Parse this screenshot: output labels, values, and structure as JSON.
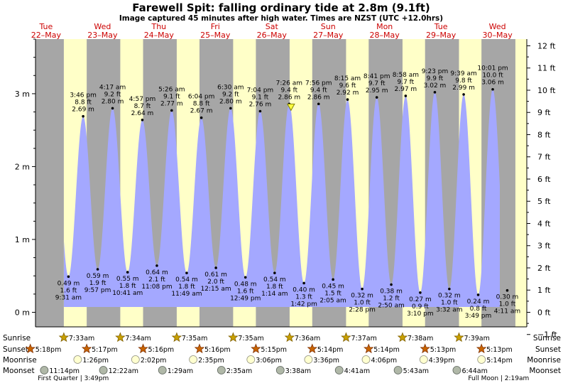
{
  "title": "Farewell Spit: falling  ordinary tide at 2.8m (9.1ft)",
  "subtitle": "Image captured 45 minutes after high water. Times are NZST (UTC +12.0hrs)",
  "chart_data": {
    "type": "area",
    "title": "Farewell Spit: falling  ordinary tide at 2.8m (9.1ft)",
    "subtitle": "Image captured 45 minutes after high water. Times are NZST (UTC +12.0hrs)",
    "xlabel": "",
    "ylabel": "",
    "y_left_ticks": [
      "0 m",
      "1 m",
      "2 m",
      "3 m"
    ],
    "y_right_ticks": [
      "−1 ft",
      "0 ft",
      "1 ft",
      "2 ft",
      "3 ft",
      "4 ft",
      "5 ft",
      "6 ft",
      "7 ft",
      "8 ft",
      "9 ft",
      "10 ft",
      "11 ft",
      "12 ft"
    ],
    "ylim_m": [
      -0.2,
      3.75
    ],
    "x_range_hours": [
      -4.5,
      204.5
    ],
    "days": [
      {
        "dow": "Tue",
        "date": "22–May"
      },
      {
        "dow": "Wed",
        "date": "23–May"
      },
      {
        "dow": "Thu",
        "date": "24–May"
      },
      {
        "dow": "Fri",
        "date": "25–May"
      },
      {
        "dow": "Sat",
        "date": "26–May"
      },
      {
        "dow": "Sun",
        "date": "27–May"
      },
      {
        "dow": "Mon",
        "date": "28–May"
      },
      {
        "dow": "Tue",
        "date": "29–May"
      },
      {
        "dow": "Wed",
        "date": "30–May"
      }
    ],
    "tides": [
      {
        "kind": "low",
        "time": "9:31 am",
        "m": "0.49 m",
        "ft": "1.6 ft",
        "h": 9.517,
        "v": 0.49
      },
      {
        "kind": "high",
        "time": "3:46 pm",
        "m": "2.69 m",
        "ft": "8.8 ft",
        "h": 15.767,
        "v": 2.69
      },
      {
        "kind": "low",
        "time": "9:57 pm",
        "m": "0.59 m",
        "ft": "1.9 ft",
        "h": 21.95,
        "v": 0.59
      },
      {
        "kind": "high",
        "time": "4:17 am",
        "m": "2.80 m",
        "ft": "9.2 ft",
        "h": 28.283,
        "v": 2.8
      },
      {
        "kind": "low",
        "time": "10:41 am",
        "m": "0.55 m",
        "ft": "1.8 ft",
        "h": 34.683,
        "v": 0.55
      },
      {
        "kind": "high",
        "time": "4:57 pm",
        "m": "2.64 m",
        "ft": "8.7 ft",
        "h": 40.95,
        "v": 2.64
      },
      {
        "kind": "low",
        "time": "11:08 pm",
        "m": "0.64 m",
        "ft": "2.1 ft",
        "h": 47.133,
        "v": 0.64
      },
      {
        "kind": "high",
        "time": "5:26 am",
        "m": "2.77 m",
        "ft": "9.1 ft",
        "h": 53.433,
        "v": 2.77
      },
      {
        "kind": "low",
        "time": "11:49 am",
        "m": "0.54 m",
        "ft": "1.8 ft",
        "h": 59.817,
        "v": 0.54
      },
      {
        "kind": "high",
        "time": "6:04 pm",
        "m": "2.67 m",
        "ft": "8.8 ft",
        "h": 66.067,
        "v": 2.67
      },
      {
        "kind": "low",
        "time": "12:15 am",
        "m": "0.61 m",
        "ft": "2.0 ft",
        "h": 72.25,
        "v": 0.61
      },
      {
        "kind": "high",
        "time": "6:30 am",
        "m": "2.80 m",
        "ft": "9.2 ft",
        "h": 78.5,
        "v": 2.8
      },
      {
        "kind": "low",
        "time": "12:49 pm",
        "m": "0.48 m",
        "ft": "1.6 ft",
        "h": 84.817,
        "v": 0.48
      },
      {
        "kind": "high",
        "time": "7:04 pm",
        "m": "2.76 m",
        "ft": "9.1 ft",
        "h": 91.067,
        "v": 2.76
      },
      {
        "kind": "low",
        "time": "1:14 am",
        "m": "0.54 m",
        "ft": "1.8 ft",
        "h": 97.233,
        "v": 0.54
      },
      {
        "kind": "high",
        "time": "7:26 am",
        "m": "2.86 m",
        "ft": "9.4 ft",
        "h": 103.433,
        "v": 2.86
      },
      {
        "kind": "low",
        "time": "1:42 pm",
        "m": "0.40 m",
        "ft": "1.3 ft",
        "h": 109.7,
        "v": 0.4
      },
      {
        "kind": "high",
        "time": "7:56 pm",
        "m": "2.86 m",
        "ft": "9.4 ft",
        "h": 115.933,
        "v": 2.86
      },
      {
        "kind": "low",
        "time": "2:05 am",
        "m": "0.45 m",
        "ft": "1.5 ft",
        "h": 122.083,
        "v": 0.45
      },
      {
        "kind": "high",
        "time": "8:15 am",
        "m": "2.92 m",
        "ft": "9.6 ft",
        "h": 128.25,
        "v": 2.92
      },
      {
        "kind": "low",
        "time": "2:28 pm",
        "m": "0.32 m",
        "ft": "1.0 ft",
        "h": 134.467,
        "v": 0.32
      },
      {
        "kind": "high",
        "time": "8:41 pm",
        "m": "2.95 m",
        "ft": "9.7 ft",
        "h": 140.683,
        "v": 2.95
      },
      {
        "kind": "low",
        "time": "2:50 am",
        "m": "0.38 m",
        "ft": "1.2 ft",
        "h": 146.833,
        "v": 0.38
      },
      {
        "kind": "high",
        "time": "8:58 am",
        "m": "2.97 m",
        "ft": "9.7 ft",
        "h": 152.967,
        "v": 2.97
      },
      {
        "kind": "low",
        "time": "3:10 pm",
        "m": "0.27 m",
        "ft": "0.9 ft",
        "h": 159.167,
        "v": 0.27
      },
      {
        "kind": "high",
        "time": "9:23 pm",
        "m": "3.02 m",
        "ft": "9.9 ft",
        "h": 165.383,
        "v": 3.02
      },
      {
        "kind": "low",
        "time": "3:32 am",
        "m": "0.32 m",
        "ft": "1.0 ft",
        "h": 171.533,
        "v": 0.32
      },
      {
        "kind": "high",
        "time": "9:39 am",
        "m": "2.99 m",
        "ft": "9.8 ft",
        "h": 177.65,
        "v": 2.99
      },
      {
        "kind": "low",
        "time": "3:49 pm",
        "m": "0.24 m",
        "ft": "0.8 ft",
        "h": 183.817,
        "v": 0.24
      },
      {
        "kind": "high",
        "time": "10:01 pm",
        "m": "3.06 m",
        "ft": "10.0 ft",
        "h": 190.017,
        "v": 3.06
      },
      {
        "kind": "low",
        "time": "4:11 am",
        "m": "0.30 m",
        "ft": "1.0 ft",
        "h": 196.183,
        "v": 0.3
      }
    ],
    "now_marker": {
      "h": 104.183,
      "v": 2.8
    },
    "night_color": "#a6a6a6",
    "day_color": "#ffffc8",
    "water_color": "#a4a8ff",
    "day_label_color": "#cc0000"
  },
  "almanac": {
    "row_labels": [
      "Sunrise",
      "Sunset",
      "Moonrise",
      "Moonset"
    ],
    "sunrise": [
      {
        "time": "7:33am",
        "h": 7.55
      },
      {
        "time": "7:34am",
        "h": 31.567
      },
      {
        "time": "7:35am",
        "h": 55.583
      },
      {
        "time": "7:35am",
        "h": 79.583
      },
      {
        "time": "7:36am",
        "h": 103.6
      },
      {
        "time": "7:37am",
        "h": 127.617
      },
      {
        "time": "7:38am",
        "h": 151.633
      },
      {
        "time": "7:39am",
        "h": 175.65
      }
    ],
    "sunset": [
      {
        "time": "5:18pm",
        "h": -6.7
      },
      {
        "time": "5:17pm",
        "h": 17.283
      },
      {
        "time": "5:16pm",
        "h": 41.267
      },
      {
        "time": "5:16pm",
        "h": 65.267
      },
      {
        "time": "5:15pm",
        "h": 89.25
      },
      {
        "time": "5:14pm",
        "h": 113.233
      },
      {
        "time": "5:14pm",
        "h": 137.233
      },
      {
        "time": "5:13pm",
        "h": 161.217
      },
      {
        "time": "5:13pm",
        "h": 185.217
      }
    ],
    "moonrise": [
      {
        "time": "1:26pm",
        "h": 13.433
      },
      {
        "time": "2:02pm",
        "h": 38.033
      },
      {
        "time": "2:35pm",
        "h": 62.583
      },
      {
        "time": "3:06pm",
        "h": 87.1
      },
      {
        "time": "3:36pm",
        "h": 111.6
      },
      {
        "time": "4:06pm",
        "h": 136.1
      },
      {
        "time": "4:39pm",
        "h": 160.65
      },
      {
        "time": "5:14pm",
        "h": 185.233
      }
    ],
    "moonset": [
      {
        "time": "11:14pm",
        "h": -0.767
      },
      {
        "time": "12:22am",
        "h": 24.367
      },
      {
        "time": "1:29am",
        "h": 49.483
      },
      {
        "time": "2:35am",
        "h": 74.583
      },
      {
        "time": "3:38am",
        "h": 99.633
      },
      {
        "time": "4:41am",
        "h": 124.683
      },
      {
        "time": "5:43am",
        "h": 149.717
      },
      {
        "time": "6:44am",
        "h": 174.733
      }
    ],
    "moon_phases": [
      {
        "text": "First Quarter | 3:49pm",
        "anchor": "start",
        "h": -3.5
      },
      {
        "text": "Full Moon | 2:19am",
        "anchor": "end",
        "h": 205.5
      }
    ],
    "sun_color": "#c8a000",
    "sunset_color": "#c86400",
    "moonrise_color": "#ffffd0",
    "moonset_color": "#b0b8a8"
  }
}
